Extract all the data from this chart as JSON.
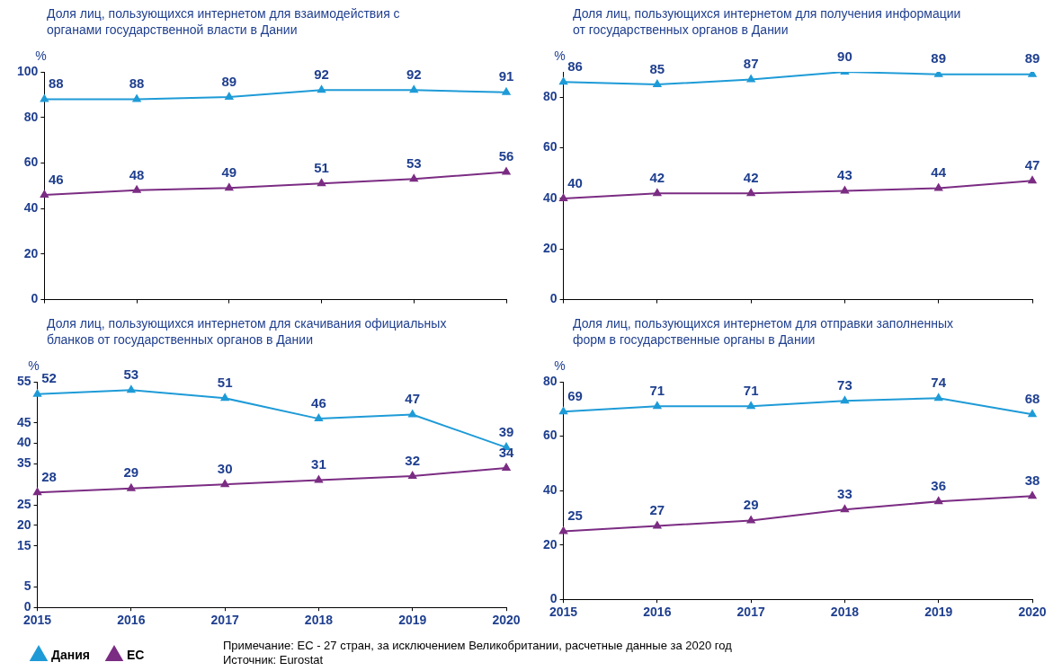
{
  "chart_data": [
    {
      "type": "line",
      "title": "Доля лиц, пользующихся интернетом для взаимодействия с органами государственной власти в Дании",
      "ylabel": "%",
      "categories": [
        "2015",
        "2016",
        "2017",
        "2018",
        "2019",
        "2020"
      ],
      "series": [
        {
          "color": "#1e9bd7",
          "values": [
            88,
            88,
            89,
            92,
            92,
            91
          ]
        },
        {
          "color": "#7b2c83",
          "values": [
            46,
            48,
            49,
            51,
            53,
            56
          ]
        }
      ],
      "ylim": [
        0,
        100
      ],
      "yticks": [
        0,
        20,
        40,
        60,
        80,
        100
      ],
      "tick_labels": "y",
      "marker": "triangle",
      "data_labels": true,
      "grid": false,
      "legend": false
    },
    {
      "type": "line",
      "title": "Доля лиц, пользующихся интернетом для получения информации от государственных органов в Дании",
      "ylabel": "%",
      "categories": [
        "2015",
        "2016",
        "2017",
        "2018",
        "2019",
        "2020"
      ],
      "series": [
        {
          "color": "#1e9bd7",
          "values": [
            86,
            85,
            87,
            90,
            89,
            89
          ]
        },
        {
          "color": "#7b2c83",
          "values": [
            40,
            42,
            42,
            43,
            44,
            47
          ]
        }
      ],
      "ylim": [
        0,
        90
      ],
      "yticks": [
        0,
        20,
        40,
        60,
        80
      ],
      "tick_labels": "y",
      "marker": "triangle",
      "data_labels": true,
      "grid": false,
      "legend": false
    },
    {
      "type": "line",
      "title": "Доля лиц, пользующихся интернетом для скачивания официальных бланков от государственных органов в Дании",
      "ylabel": "%",
      "categories": [
        "2015",
        "2016",
        "2017",
        "2018",
        "2019",
        "2020"
      ],
      "series": [
        {
          "name": "Дания",
          "color": "#1e9bd7",
          "values": [
            52,
            53,
            51,
            46,
            47,
            39
          ]
        },
        {
          "name": "ЕС",
          "color": "#7b2c83",
          "values": [
            28,
            29,
            30,
            31,
            32,
            34
          ]
        }
      ],
      "ylim": [
        0,
        55
      ],
      "yticks": [
        0,
        5,
        15,
        20,
        25,
        35,
        40,
        45,
        55
      ],
      "marker": "triangle",
      "data_labels": true,
      "grid": false,
      "legend": "bottom left",
      "annotations": [
        "Примечание:  ЕС - 27 стран, за исключением Великобритании,  расчетные данные за 2020 год",
        "Источник: Eurostat"
      ]
    },
    {
      "type": "line",
      "title": "Доля лиц, пользующихся интернетом для отправки заполненных форм в государственные органы в Дании",
      "ylabel": "%",
      "categories": [
        "2015",
        "2016",
        "2017",
        "2018",
        "2019",
        "2020"
      ],
      "series": [
        {
          "color": "#1e9bd7",
          "values": [
            69,
            71,
            71,
            73,
            74,
            68
          ]
        },
        {
          "color": "#7b2c83",
          "values": [
            25,
            27,
            29,
            33,
            36,
            38
          ]
        }
      ],
      "ylim": [
        0,
        80
      ],
      "yticks": [
        0,
        20,
        40,
        60,
        80
      ],
      "marker": "triangle",
      "data_labels": true,
      "grid": false,
      "legend": false
    }
  ]
}
